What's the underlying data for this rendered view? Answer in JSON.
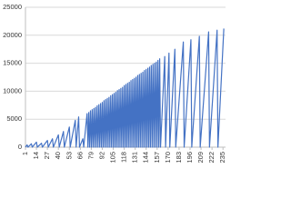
{
  "chart_data": {
    "type": "line",
    "color": "#4472c4",
    "grid": true,
    "xlim": [
      1,
      238
    ],
    "xticks": [
      1,
      14,
      27,
      40,
      53,
      66,
      79,
      92,
      105,
      118,
      131,
      144,
      157,
      170,
      183,
      196,
      209,
      222,
      235
    ],
    "ylim": [
      0,
      25000
    ],
    "yticks": [
      0,
      5000,
      10000,
      15000,
      20000,
      25000
    ],
    "x": [
      1,
      3,
      4,
      8,
      9,
      14,
      15,
      20,
      21,
      27,
      28,
      33,
      34,
      40,
      41,
      46,
      47,
      53,
      54,
      60,
      61,
      64,
      65,
      69,
      70,
      74,
      75,
      76,
      77,
      78,
      79,
      80,
      81,
      82,
      83,
      84,
      85,
      86,
      87,
      88,
      89,
      90,
      91,
      92,
      93,
      94,
      95,
      96,
      97,
      98,
      99,
      100,
      101,
      102,
      103,
      104,
      105,
      106,
      107,
      108,
      109,
      110,
      111,
      112,
      113,
      114,
      115,
      116,
      117,
      118,
      119,
      120,
      121,
      122,
      123,
      124,
      125,
      126,
      127,
      128,
      129,
      130,
      131,
      132,
      133,
      134,
      135,
      136,
      137,
      138,
      139,
      140,
      141,
      142,
      143,
      144,
      145,
      146,
      147,
      148,
      149,
      150,
      151,
      152,
      153,
      154,
      155,
      156,
      157,
      158,
      159,
      160,
      161,
      166,
      167,
      171,
      172,
      178,
      179,
      188,
      189,
      197,
      198,
      207,
      208,
      218,
      219,
      228,
      229,
      236
    ],
    "values": [
      0,
      400,
      0,
      600,
      0,
      900,
      0,
      700,
      0,
      1200,
      0,
      1500,
      0,
      2200,
      0,
      2800,
      0,
      3600,
      0,
      4800,
      0,
      5400,
      0,
      1500,
      0,
      6000,
      0,
      6200,
      0,
      6500,
      0,
      6700,
      0,
      6900,
      0,
      7100,
      0,
      7400,
      0,
      7600,
      0,
      7800,
      0,
      8000,
      0,
      8300,
      0,
      8500,
      0,
      8700,
      0,
      8900,
      0,
      9200,
      0,
      9400,
      0,
      9600,
      0,
      9800,
      0,
      10100,
      0,
      10300,
      0,
      10500,
      0,
      10700,
      0,
      11000,
      0,
      11200,
      0,
      11400,
      0,
      11600,
      0,
      11900,
      0,
      12100,
      0,
      12300,
      0,
      12500,
      0,
      12800,
      0,
      13000,
      0,
      13200,
      0,
      13400,
      0,
      13700,
      0,
      13900,
      0,
      14100,
      0,
      14300,
      0,
      14600,
      0,
      14800,
      0,
      15000,
      0,
      15200,
      0,
      15500,
      0,
      15800,
      0,
      16200,
      0,
      16800,
      0,
      17500,
      0,
      18800,
      0,
      19200,
      0,
      19800,
      0,
      20600,
      0,
      20900,
      0,
      21200
    ]
  }
}
